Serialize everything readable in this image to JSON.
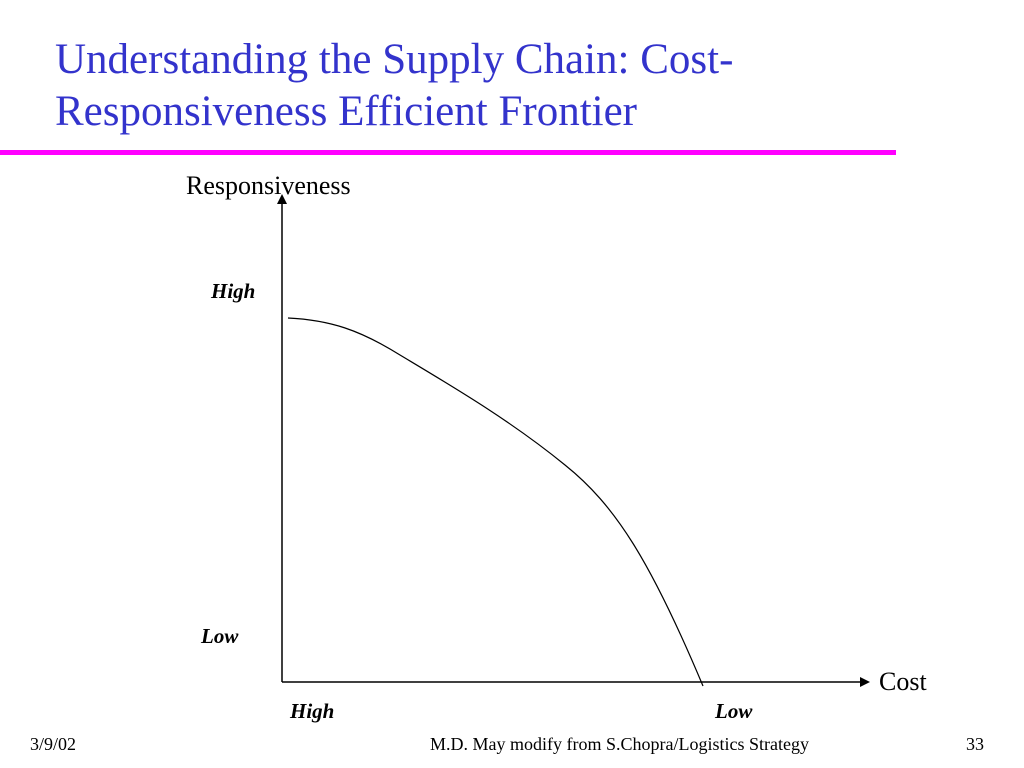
{
  "slide": {
    "title_line1": "Understanding the Supply Chain: Cost-",
    "title_line2": "Responsiveness Efficient Frontier",
    "title_color": "#3333cc",
    "rule_color": "#ff00ff"
  },
  "diagram": {
    "y_axis_label": "Responsiveness",
    "x_axis_label": "Cost",
    "y_high_label": "High",
    "y_low_label": "Low",
    "x_high_label": "High",
    "x_low_label": "Low"
  },
  "footer": {
    "date": "3/9/02",
    "credit": "M.D. May modify from S.Chopra/Logistics Strategy",
    "page": "33"
  }
}
